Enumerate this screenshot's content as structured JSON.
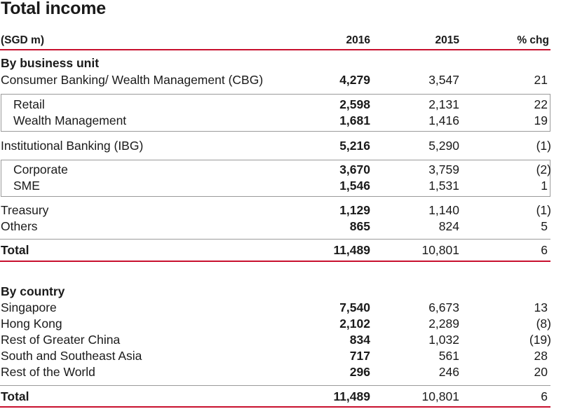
{
  "title": "Total income",
  "header": {
    "unit": "(SGD m)",
    "col_2016": "2016",
    "col_2015": "2015",
    "col_chg": "% chg"
  },
  "business_unit": {
    "section": "By business unit",
    "cbg": {
      "label": "Consumer Banking/ Wealth Management (CBG)",
      "v2016": "4,279",
      "v2015": "3,547",
      "chg": "21"
    },
    "cbg_sub": [
      {
        "label": "Retail",
        "v2016": "2,598",
        "v2015": "2,131",
        "chg": "22"
      },
      {
        "label": "Wealth Management",
        "v2016": "1,681",
        "v2015": "1,416",
        "chg": "19"
      }
    ],
    "ibg": {
      "label": "Institutional Banking (IBG)",
      "v2016": "5,216",
      "v2015": "5,290",
      "chg": "(1)"
    },
    "ibg_sub": [
      {
        "label": "Corporate",
        "v2016": "3,670",
        "v2015": "3,759",
        "chg": "(2)"
      },
      {
        "label": "SME",
        "v2016": "1,546",
        "v2015": "1,531",
        "chg": "1"
      }
    ],
    "treasury": {
      "label": "Treasury",
      "v2016": "1,129",
      "v2015": "1,140",
      "chg": "(1)"
    },
    "others": {
      "label": "Others",
      "v2016": "865",
      "v2015": "824",
      "chg": "5"
    },
    "total": {
      "label": "Total",
      "v2016": "11,489",
      "v2015": "10,801",
      "chg": "6"
    }
  },
  "country": {
    "section": "By country",
    "rows": [
      {
        "label": "Singapore",
        "v2016": "7,540",
        "v2015": "6,673",
        "chg": "13"
      },
      {
        "label": "Hong Kong",
        "v2016": "2,102",
        "v2015": "2,289",
        "chg": "(8)"
      },
      {
        "label": "Rest of Greater China",
        "v2016": "834",
        "v2015": "1,032",
        "chg": "(19)"
      },
      {
        "label": "South and Southeast Asia",
        "v2016": "717",
        "v2015": "561",
        "chg": "28"
      },
      {
        "label": "Rest of the World",
        "v2016": "296",
        "v2015": "246",
        "chg": "20"
      }
    ],
    "total": {
      "label": "Total",
      "v2016": "11,489",
      "v2015": "10,801",
      "chg": "6"
    }
  },
  "colors": {
    "accent_red": "#c8102e",
    "rule_grey": "#9a9a9a",
    "text": "#1a1a1a"
  }
}
